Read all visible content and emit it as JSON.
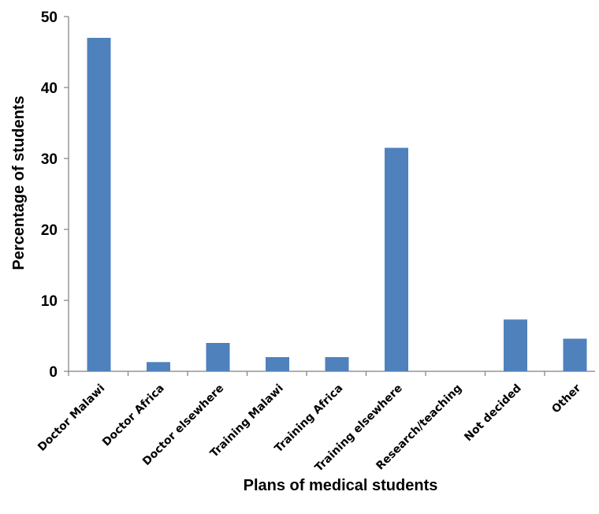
{
  "chart_data": {
    "type": "bar",
    "title": "",
    "xlabel": "Plans of medical students",
    "ylabel": "Percentage of students",
    "ylim": [
      0,
      50
    ],
    "yticks": [
      0,
      10,
      20,
      30,
      40,
      50
    ],
    "grid": false,
    "bar_color": "#4f81bd",
    "categories": [
      "Doctor Malawi",
      "Doctor Africa",
      "Doctor elsewhere",
      "Training Malawi",
      "Training Africa",
      "Training elsewhere",
      "Research/teaching",
      "Not decided",
      "Other"
    ],
    "values": [
      47,
      1.3,
      4,
      2,
      2,
      31.5,
      0,
      7.3,
      4.6
    ]
  }
}
